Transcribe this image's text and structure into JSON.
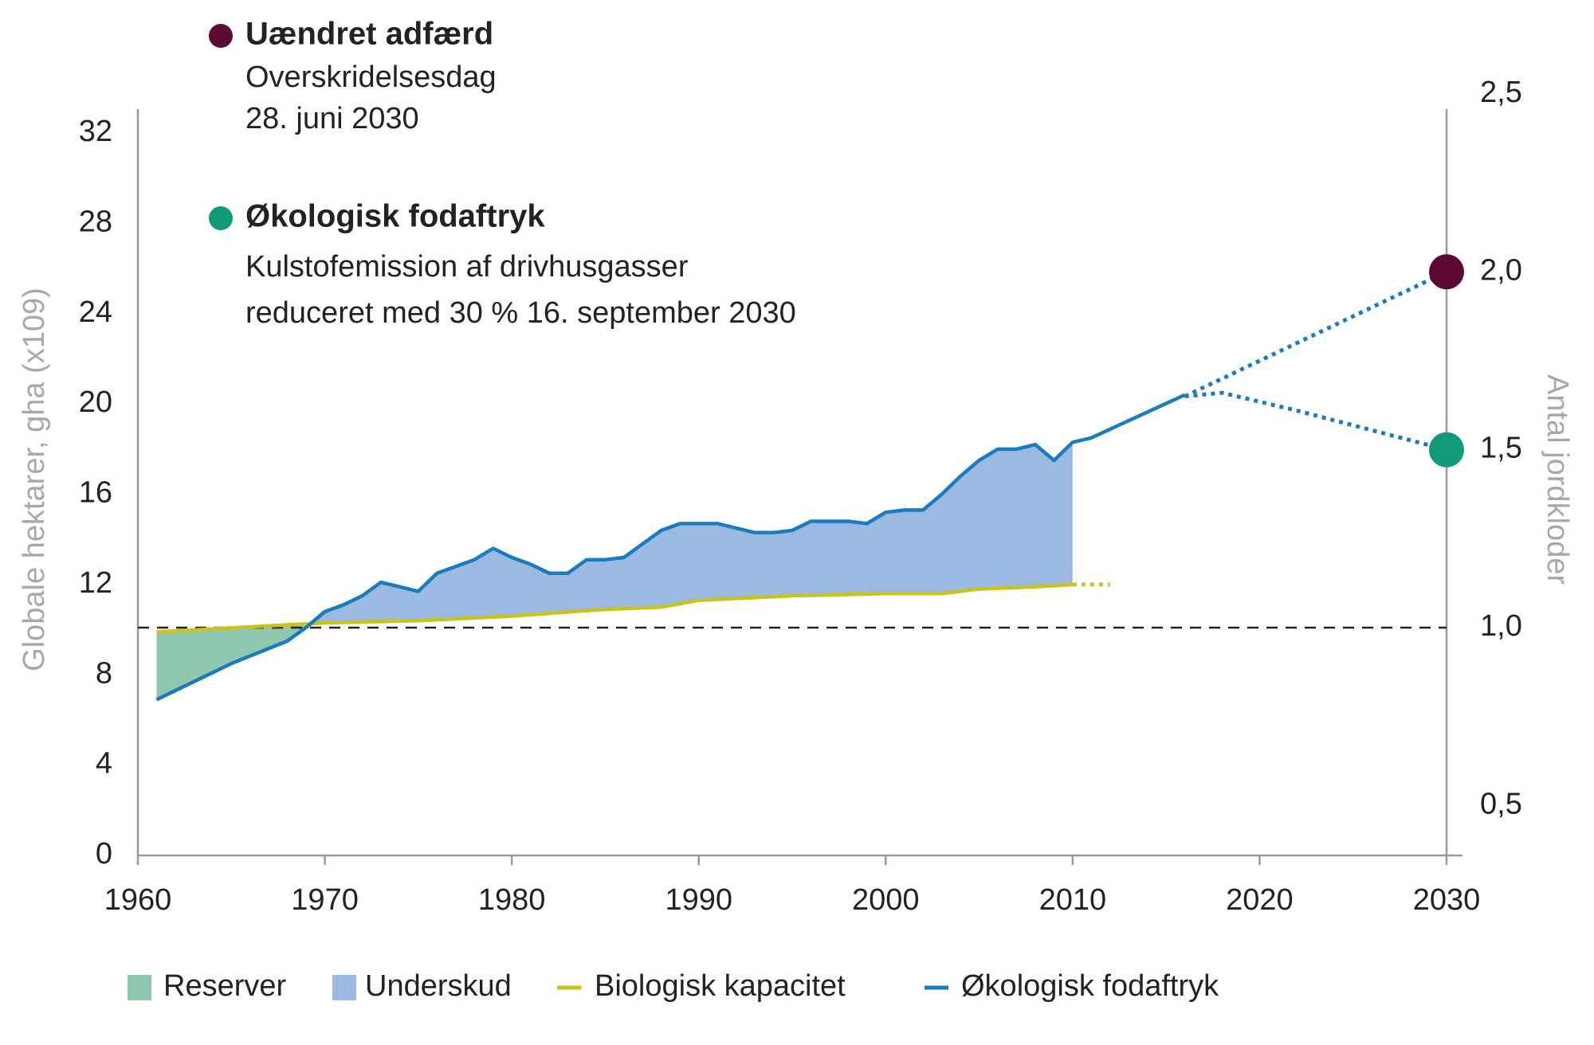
{
  "chart_data": {
    "type": "line",
    "annotations": [
      {
        "label": "Uændret adfærd",
        "color": "#5c0a35",
        "lines": [
          "Overskridelsesdag",
          "28. juni 2030"
        ]
      },
      {
        "label": "Økologisk fodaftryk",
        "color": "#109a78",
        "lines": [
          "Kulstofemission af drivhusgasser",
          "reduceret med 30 % 16. september 2030"
        ]
      }
    ],
    "y_label": "Globale hektarer, gha (x109)",
    "y2_label": "Antal jordkloder",
    "xlim": [
      1960,
      2030
    ],
    "xticks": [
      1960,
      1970,
      1980,
      1990,
      2000,
      2010,
      2020,
      2030
    ],
    "ylim": [
      0,
      32
    ],
    "yticks": [
      0,
      4,
      8,
      12,
      16,
      20,
      24,
      28,
      32
    ],
    "y2lim": [
      0.36,
      2.39
    ],
    "y2ticks": [
      {
        "value": 0.5,
        "label": "0,5"
      },
      {
        "value": 1,
        "label": "1,0"
      },
      {
        "value": 1.5,
        "label": "1,5"
      },
      {
        "value": 2,
        "label": "2,0"
      },
      {
        "value": 2.5,
        "label": "2,5"
      }
    ],
    "reference_line": {
      "axis": "y2",
      "value": 1
    },
    "areas": [
      {
        "name": "Reserver",
        "color": "#8fc6ae"
      },
      {
        "name": "Underskud",
        "color": "#9cb9e2"
      }
    ],
    "series": [
      {
        "name": "Biologisk kapacitet",
        "color": "#cbc21c",
        "x": [
          1961,
          1970,
          1975,
          1980,
          1985,
          1988,
          1990,
          1995,
          2000,
          2003,
          2005,
          2008,
          2010
        ],
        "values": [
          9.9,
          10.3,
          10.4,
          10.6,
          10.9,
          11.0,
          11.3,
          11.5,
          11.6,
          11.6,
          11.8,
          11.9,
          12.0
        ]
      },
      {
        "name": "Økologisk fodaftryk",
        "color": "#1a7bbf",
        "x": [
          1961,
          1965,
          1968,
          1969,
          1970,
          1971,
          1972,
          1973,
          1974,
          1975,
          1976,
          1977,
          1978,
          1979,
          1980,
          1981,
          1982,
          1983,
          1984,
          1985,
          1986,
          1987,
          1988,
          1989,
          1990,
          1991,
          1992,
          1993,
          1994,
          1995,
          1996,
          1997,
          1998,
          1999,
          2000,
          2001,
          2002,
          2003,
          2004,
          2005,
          2006,
          2007,
          2008,
          2009,
          2010,
          2011,
          2016
        ],
        "values": [
          6.9,
          8.5,
          9.5,
          10.1,
          10.8,
          11.1,
          11.5,
          12.1,
          11.9,
          11.7,
          12.5,
          12.8,
          13.1,
          13.6,
          13.2,
          12.9,
          12.5,
          12.5,
          13.1,
          13.1,
          13.2,
          13.8,
          14.4,
          14.7,
          14.7,
          14.7,
          14.5,
          14.3,
          14.3,
          14.4,
          14.8,
          14.8,
          14.8,
          14.7,
          15.2,
          15.3,
          15.3,
          16.0,
          16.8,
          17.5,
          18.0,
          18.0,
          18.2,
          17.5,
          18.3,
          18.5,
          20.4
        ]
      },
      {
        "color": "#cbc21c",
        "dash": true,
        "x": [
          2010,
          2012
        ],
        "values": [
          12.0,
          12.0
        ]
      },
      {
        "color": "#1a7bbf",
        "dash": true,
        "axis": "y2",
        "marker_color": "#5c0a35",
        "x": [
          2016,
          2030
        ],
        "values": [
          1.65,
          2.0
        ]
      },
      {
        "color": "#1a7bbf",
        "dash": true,
        "axis": "y2",
        "marker_color": "#109a78",
        "x": [
          2016,
          2018,
          2022,
          2030
        ],
        "values": [
          1.65,
          1.66,
          1.61,
          1.5
        ]
      }
    ]
  }
}
